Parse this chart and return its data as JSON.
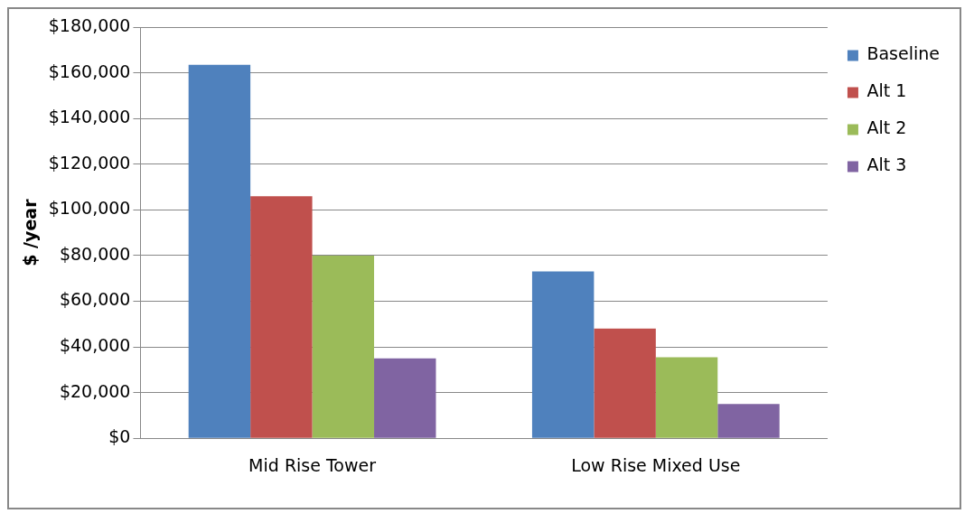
{
  "chart_data": {
    "type": "bar",
    "ylabel": "$ /year",
    "categories": [
      "Mid Rise Tower",
      "Low Rise Mixed Use"
    ],
    "series": [
      {
        "name": "Baseline",
        "color": "#4f81bd",
        "values": [
          163500,
          73000
        ]
      },
      {
        "name": "Alt 1",
        "color": "#c0504d",
        "values": [
          106000,
          48000
        ]
      },
      {
        "name": "Alt 2",
        "color": "#9bbb59",
        "values": [
          80000,
          35500
        ]
      },
      {
        "name": "Alt 3",
        "color": "#8064a2",
        "values": [
          35000,
          15000
        ]
      }
    ],
    "ylim": [
      0,
      180000
    ],
    "yticks": [
      {
        "value": 0,
        "label": "$0"
      },
      {
        "value": 20000,
        "label": "$20,000"
      },
      {
        "value": 40000,
        "label": "$40,000"
      },
      {
        "value": 60000,
        "label": "$60,000"
      },
      {
        "value": 80000,
        "label": "$80,000"
      },
      {
        "value": 100000,
        "label": "$100,000"
      },
      {
        "value": 120000,
        "label": "$120,000"
      },
      {
        "value": 140000,
        "label": "$140,000"
      },
      {
        "value": 160000,
        "label": "$160,000"
      },
      {
        "value": 180000,
        "label": "$180,000"
      }
    ],
    "grid": "y",
    "legend": "top right"
  }
}
